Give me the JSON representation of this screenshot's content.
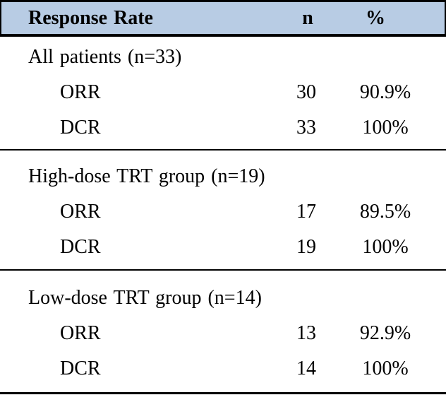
{
  "table": {
    "header": {
      "label": "Response Rate",
      "n": "n",
      "pct": "%"
    },
    "sections": [
      {
        "label": "All patients (n=33)",
        "rows": [
          {
            "name": "ORR",
            "n": "30",
            "pct": "90.9%"
          },
          {
            "name": "DCR",
            "n": "33",
            "pct": "100%"
          }
        ]
      },
      {
        "label": "High-dose TRT group (n=19)",
        "rows": [
          {
            "name": "ORR",
            "n": "17",
            "pct": "89.5%"
          },
          {
            "name": "DCR",
            "n": "19",
            "pct": "100%"
          }
        ]
      },
      {
        "label": "Low-dose TRT group (n=14)",
        "rows": [
          {
            "name": "ORR",
            "n": "13",
            "pct": "92.9%"
          },
          {
            "name": "DCR",
            "n": "14",
            "pct": "100%"
          }
        ]
      }
    ],
    "colors": {
      "header_bg": "#b8cce4",
      "border": "#000000",
      "text": "#000000"
    }
  }
}
